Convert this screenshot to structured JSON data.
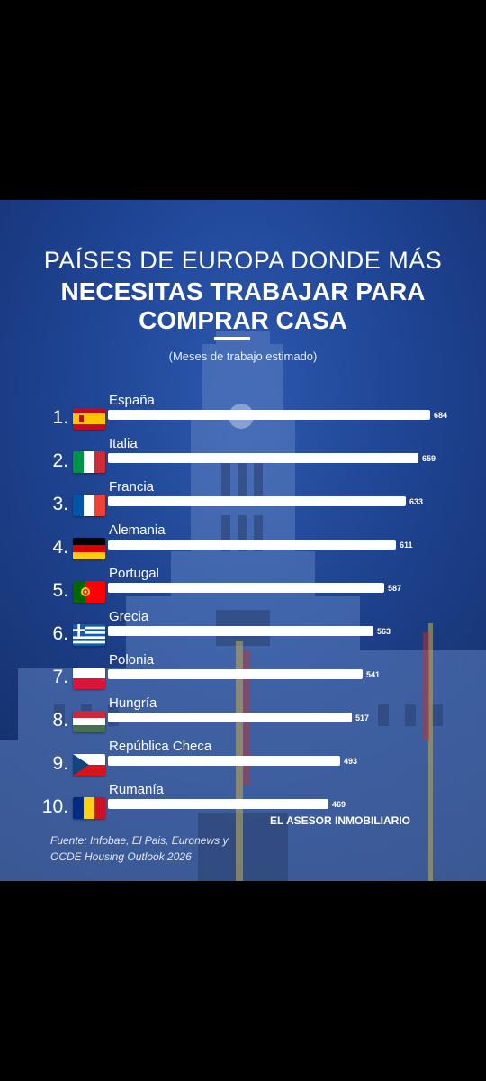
{
  "header": {
    "title_line1": "PAÍSES DE EUROPA DONDE MÁS",
    "title_line2": "NECESITAS TRABAJAR PARA",
    "title_line3": "COMPRAR CASA",
    "subtitle": "(Meses de trabajo estimado)"
  },
  "chart_data": {
    "type": "bar",
    "orientation": "horizontal",
    "title": "PAÍSES DE EUROPA DONDE MÁS NECESITAS TRABAJAR PARA COMPRAR CASA",
    "subtitle": "(Meses de trabajo estimado)",
    "ranks": [
      "1.",
      "2.",
      "3.",
      "4.",
      "5.",
      "6.",
      "7.",
      "8.",
      "9.",
      "10."
    ],
    "categories": [
      "España",
      "Italia",
      "Francia",
      "Alemania",
      "Portugal",
      "Grecia",
      "Polonia",
      "Hungría",
      "República Checa",
      "Rumanía"
    ],
    "values": [
      684,
      659,
      633,
      611,
      587,
      563,
      541,
      517,
      493,
      469
    ],
    "flags": [
      "spain-flag-icon",
      "italy-flag-icon",
      "france-flag-icon",
      "germany-flag-icon",
      "portugal-flag-icon",
      "greece-flag-icon",
      "poland-flag-icon",
      "hungary-flag-icon",
      "czech-flag-icon",
      "romania-flag-icon"
    ],
    "bar_color": "#ffffff",
    "grid": false,
    "legend": "none"
  },
  "footer": {
    "brand": "EL ASESOR INMOBILIARIO",
    "source_line1": "Fuente: Infobae, El Pais, Euronews y",
    "source_line2": "OCDE Housing Outlook 2026"
  },
  "colors": {
    "background": "#1f4596",
    "text": "#ffffff",
    "outer": "#000000"
  }
}
